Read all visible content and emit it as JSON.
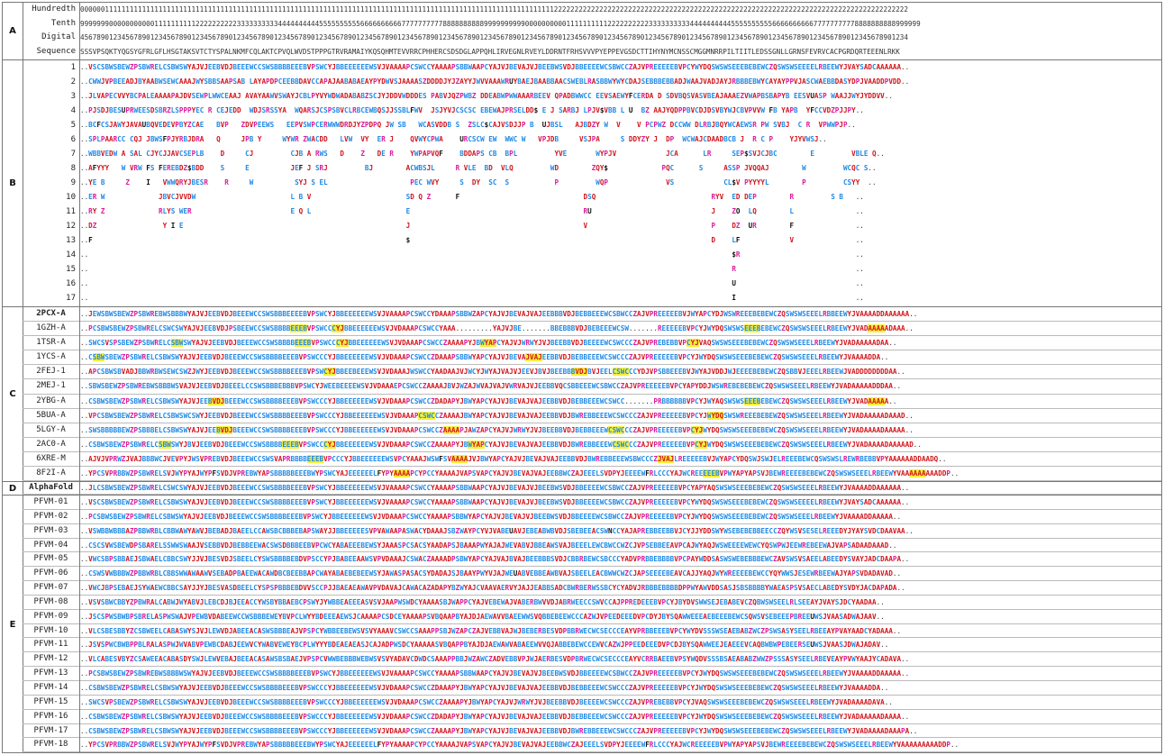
{
  "sections": {
    "A": {
      "letter": "A",
      "labels": [
        "Hundredth",
        "Tenth",
        "Digital",
        "Sequence"
      ],
      "rows": [
        "000000111111111111111111111111111111111111111111111111111111111111111111111111111111111111111111111111111111111111122222222222222222222222222222222222222222222222222222222222222222222222222222222222222",
        "999999900000000000111111111122222222223333333333444444444455555555556666666666777777777788888888889999999999000000000011111111112222222222333333333344444444445555555555666666666677777777778888888888999999",
        "456789012345678901234567890123456789012345678901234567890123456789012345678901234567890123456789012345678901234567890123456789012345678901234567890123456789012345678901234567890123456789012345678901234",
        "SSSVPSQKTYQGSYGFRLGFLHSGTAKSVTCTYSPALNKMFCQLAKTCPVQLWVDSTPPPGTRVRAMAIYKQSQHMTEVVRRCPHHERCSDSDGLAPPQHLIRVEGNLRVEYLDDRNTFRHSVVVPYEPPEVGSDCTTIHYNYMCNSSCMGGMNRRPILTIITLEDSSGNLLGRNSFEVRVCACPGRDQRTEEENLRKK"
      ]
    },
    "B": {
      "letter": "B",
      "labels": [
        "1",
        "2",
        "3",
        "4",
        "5",
        "6",
        "7",
        "8",
        "9",
        "10",
        "11",
        "12",
        "13",
        "14",
        "15",
        "16",
        "17"
      ],
      "rows": [
        "..VSCSBWSBEWZPSBWRELCSBWSWYAJVJEEBVDJBEEEWCCSWSBBBBEEEBVPSWCYJBBEEEEEEWSVJVAAAAPCSWCCYAAAAPSBBWAAPCYAJVJBEVAJVJBEEBWSVDJBBEEEEWCSBWCCZAJVPREEEEEBVPCYWYDQSWSWSEEEBEBEWCZQSWSWSEEEELRBEEWYJVAYSADCAAAAAA..",
        "..CWWJVPBEEADJBYAABWSEWCAAAJWYSBBSAAPSAB LAYAPDPCEEBBDAVCCAPAJAABABAEAYPYDWVSJAAAASZDDDDJYJZAYYJWVVAAAWRUYBAEJBAABBAACSWEBLRASBBWYWYCDAJSEBBBEBBADJWAAJVADJAYJRBBBEBWYCAYAYPPVJASCWAEBBDASYDPJVAADDPVDD..",
        "..JLVAPECVVYBCPALEAAAAPAJDVSEWPLWWCEAAJ AVAYAAWVSWAYJCBLPYVYWDWADABABZSCJYJDDVWDDDES PABVJQZPWBZ DDEABWPWWAAARBEEV QPADBWWCC EEVSAEWYFCERDA D SDVBQSVASVBEAJAAAEZVWAPBSBAPYB EESVUASP WAAJJWYJYDDVV..",
        "..PJSDJBESUPRWEESDSBRZLSPPPYEC R CEJEDD  WDJSRSSYA  WQARSJCSPSBVCLRBCEWBQSJJSSBLFWV  JSJYVJCSCSC EBEWAJPRSELDD$ E J SARBJ LPJV$VBB L U  BZ AAJYQDPPBVCDJDSVBYWJCBVPVVW FB YAPB  YFCCVDZPJJPY..",
        "..BCFCSJAWYJAVAUBQVEDEVPBYZCAE   BVP   ZDVPEEWS   EEPVSWPCERWWWDRDJYZPDPQ JW SB   WCASVDDB S  ZSLC$CAJVSDJJP B  UJBSL   AJBDZY W  V    V PCPWZ DCCWW DLRBJBQYWCAEWSR PW SVBJ  C R  VPWWPJP..",
        "..SPLPAARCC CQJ JBWSFPJYRBJDRA   Q     JPB Y     WYWR ZWACDD   LVW  VY  ER J    QVWYCPWA    URCSCW EW  WWC W   VPJDB     VSJPA     S DDYZY J  DP  WCWAJCDAADBCB J  R C P    YJYVWSJ..",
        "..WBBVEDW A SAL CJYCJJAVCSEPLB    D     CJ         CJB A RWS   D    Z   DE R    YWPAPVQF    BDDAPS CB  BPL         YVE       WYPJV            JCA      LR     SEP$SVJCJBC        E         VBLE Q..",
        "..AFYYY   W VRW FS FEREBDZ$BDD    S     E          JEF J SRJ         BJ        ACWBSJL     R VLE  BD  VLQ         WD        ZQY$             PQC      S     ASSP JVQQAJ        W         WCQC S..",
        "..YE B     Z    I   VWWQRYJBESR    R     W          SYJ S EL                    PEC WVY     S  DY  SC  S           P         WQP              VS            CL$V PYYYYL        P         CSYY  ..",
        "..ER W             JBVCJVVDW                       L B V                       SD Q Z      F                              DSQ                            RYV  ED DEP        R         S B   ..",
        "..RY Z             RLYS WER                        E Q L                       E                                          RU                             J    ZO  LQ        L               ..",
        "..DZ                Y I E                                                      J                                          V                              P    DZ  UR        F               ..",
        "..F                                                                            $                                                                         D    LF            V               ..",
        "..                                                                                                                                                            $R                            ..",
        "..                                                                                                                                                            R                             ..",
        "..                                                                                                                                                            U                             ..",
        "..                                                                                                                                                            I                             .."
      ]
    },
    "C": {
      "letter": "C",
      "labels": [
        "2PCX-A",
        "1GZH-A",
        "1TSR-A",
        "1YCS-A",
        "2FEJ-1",
        "2MEJ-1",
        "2YBG-A",
        "5BUA-A",
        "5LGY-A",
        "2AC0-A",
        "6XRE-M",
        "8F2I-A"
      ],
      "rows": [
        "..JEWSBWSBEWZPSBWREBWSBBBWYAJVJEEBVDJBEEEWCCSWSBBBEEEEBVPSWCYJBBEEEEEEWSVJVAAAAPCSWCCYDAAAPSBBWZAPCYAJVJBEVAJVAJEEBBBVDJBEBBEEEWCSBWCCZAJVPREEEEEBVJWYAPCYDJWSWREEEBEBEWCZQSWSWSEEELRBBEEWYJVAAAADDAAAAAA..",
        "..PCSBWSBEWZPSBWRELCSWCSWYAJVJEEBVDJPSBEEWCCSWSBBBBEEEBVPSWCCCYJBBEEEEEEWSVJVDAAAPCSWCCYAAA.........YAJVJBE.......BBEBBBVDJBEBEEEWCSW.......REEEEEBVPCYJWYDQSWSWSEEEBEBEWCZQSWSWSEEELRBEEWYJVADAAAAADAAA..",
        "..SWCSVSPSBEWZPSBWRELCSBWSWYAJVJEEBVDJBEEEWCCSWSBBBBEEEBVPSWCCCYJBBEEEEEEWSVJVDAAAPCSWCCZAAAAPYJBWYAPCYAJVJWRWYJVJBEEBBVDJBEEEEWCSWCCCZAJVPREBEBBVPCYJVAQSWSWSEEEBEBEWCZQSWSWSEEELRBEEWYJVADAAAAADAA..",
        "..CSBWSBEWZPSBWRELCSBWSWYAJVJEEBVDJBEEEWCCSWSBBBBEEEBVPSWCCCYJBBEEEEEEWSVJVDAAAPCSWCCZDAAAPSBBWYAPCYAJVJBEVAJVAJEEBBVDJBEBBEEEWCSWCCCZAJVPREEEEEBVPCYJWYDQSWSWSEEEBEBEWCZQSWSWSEEELRBEEWYJVAAAADDA..",
        "..APCSBWSBVADJBBWRBWSEWCSWZJWYJEEBVDJBEEEWCCSWSBBBBEEEBVPSWCYJBBEEBEEEWSVJVDAAAJWSWCCYAADAAJVJWCYJWYAJVAJVJEEVJBVJBEEBBBVDJBVJEELCSWCCCYDJVPSBBEEEBVJWYAJVDDJWJEEEEBEBEWCZQSBBVJEEELRBEEWJVADDDDDDDDAA..",
        "..SBWSBEWZPSBWREBWSBBBWSVAJVJEEBVDJBEEELCCSWSBBBEBBBVPSWCYJWEEBEEEEWSVJVDAAAEPCSWCCZAAAAJBVJWZAJWVAJVAJVWRVAJVJEEBBVQCSBBEEEWCSBWCCZAJVPREEEEEBVPCYAPYDDJWSWREBEBEBEWCZQSWSWSEEELRBEEWYJVADAAAAADDDAA..",
        "..CSBWSBEWZPSBWRELCSBWSWYAJVJEEBVDJBEEEWCCSWSBBBBEEEBVPSWCCCYJBBEEEEEEWSVJVDAAAPCSWCCZDADAPYJBWYAPCYAJVJBEVAJVAJEEBBVDJBEBBEEEWCSWCC.......PRBBBBBBVPCYJWYAQSWSWSEEEBEBEWCZQSWSWSEEELRBEEWYJVADAAAAA..",
        "..VPCSBWSBEWZPSBWRELCSBWSWCSWYJEEBVDJBEEEWCCSWSBBBBEEEBVPSWCCCYJBBEEEEEEWSVJVDAAAPCSWCCZAAAAJBWYAPCYAJVJBEVAJVAJEEBBVDJBWREBBEEEWCSWCCCZAJVPREEEEEBVPCYJWYDQSWSWREEEBEBEWZQSWSWSEEELRBEEWYJVADAAAAADAAAD..",
        "..SWSBBBBBEWZPSBBBELCSBWSWYAJVJEEBVDJBEEEWCCSWSBBBBEEEBVPSWCCCYJBBEEEEEEWSVJVDAAAPCSWCCZAAAAPJAWZAPCYAJVJWRWYJVJBEEBBVDJBEBBEEEWCSWCCCZAJVPREEEEEBVPCYJWYDQSWSWSEEEBEBEWCZQSWSWSEEELRBEEWYJVADAAAADAAAAA..",
        "..CSBWSBEWZPSBWRELCSBWSWYJBVJEEBVDJBEEEWCCSWSBBBBEEEBVPSWCCCYJBBEEEEEEWSVJVDAAAPCSWCCZAAAAPYJBWYAPCYAJVJBEVAJVAJEEBBVDJBWREBBEEEWCSWCCCZAJVPREEEEEBVPCYJWYDQSWSWSEEEBEBEWCZQSWSWSEEELRBEEWYJVADAAAADAAAAAD..",
        "..AJVJVPRWZJVAJBBBWCJVEVPYJWSVPREBVDJBEEEWCCSWSVAPRBBBBEEEBVPCCCYJBBEEEEEEWSVPCYAAAJWSWFSVAAAAJVJBWYAPCYAJVJBEVAJVAJEEBBVDJBWREBBEEEWSBWCCCZJVAJLREEEEEBVJWYAPCYDQSWJSWJELREEEBEWCQSWSWSLREWRBEBBVPYAAAAAADDAADQ..",
        "..YPCSVPRBBWZPSBWRELSVJWYPYAJWYPFSVDJVPREBWYAPSBBBBBEEEBWYPSWCYAJEEEEEELFYPYAAAAPCYPCCYAAAAJVAPSVAPCYAJVJBEVAJVAJEEBBWCZAJEEELSVDPYJEEEEWFRLCCCYAJWCREEEEEBVPWYAPYAPSVJBEWREEEEBEBEWCZQSWSWSEEELRBEEWYVAAAAAAAAADDP.."
      ]
    },
    "D": {
      "letter": "D",
      "labels": [
        "AlphaFold"
      ],
      "rows": [
        "..JLCSBWSBEWZPSBWRELCSWCSWYAJVJEEBVDJBEEEWCCSWSBBBBEEEBVPSWCYJBBEEEEEEWSVJVAAAAPCSWCCYAAAAPSBBWAAPCYAJVJBEVAJVJBEEBWSVDJBBEEEEWCSBWCCZAJVPREEEEEBVPCYAPYAQSWSWSEEEBEBEWCZQSWSWSEEELRBEEWYJVAAAADDAAAAAA.."
      ]
    },
    "E": {
      "letter": "E",
      "labels": [
        "PFVM-01",
        "PFVM-02",
        "PFVM-03",
        "PFVM-04",
        "PFVM-05",
        "PFVM-06",
        "PFVM-07",
        "PFVM-08",
        "PFVM-09",
        "PFVM-10",
        "PFVM-11",
        "PFVM-12",
        "PFVM-13",
        "PFVM-14",
        "PFVM-15",
        "PFVM-16",
        "PFVM-17",
        "PFVM-18"
      ],
      "rows": [
        "..VSCSBWSBEWZPSBWRELCSBWSWYAJVJEEBVDJBEEEWCCSWSBBBBEEEBVPSWCYJBBEEEEEEWSVJVAAAAPCSWCCYAAAAPSBBWAAPCYAJVJBEVAJVJBEEBWSVDJBBEEEEWCSBWCCZAJVPREEEEEBVPCYWYDQSWSWSEEEBEBEWCZQSWSWSEEEELRBEEWYJVAYSADCAAAAAA..",
        "..PCSBWSBEWZPSBWRELCSBWSWYAJVJEEBVDJBEEEWCCSWSBBBBEEEBVPSWCYJBBEEEEEEWSVJVDAAAPCSWCCYAAAAPSBBWYAPCYAJVJBEVAJVJBEEBWSVDJBBEEEEWCSBWCCZAJVPREEEEEBVPCYJWYDQSWSWSEEEBEBEWCZQSWSWSEEELRBEEWYJVAAAADDAAAAA..",
        "..VSWBBWBBBAZPBBWRBLCBBWAWYAWVJBEBADJBAEELCCAWSBCBBBEBAPSWAYJJBBEEEEESVPVAWAAPASWACYDAAAJSBZWAYPCYVJVABEUAVJEBEABWBVDJSBEBEEACSWNCCYAJAPREBBEEBBVJCYJJYDDSWYWSEBEBEBBEECCZQYWSVSESELREEEDYJYAYSVDCDAAVAA..",
        "..CSCSVWSBEWDPSBARELSSWWSWAAJVSEBBVDJBEBBEEWACSWSDBBBEEBVPCWCYABAEEEBEWSYJAAASPCSACSYAADAPSJBAAAPWYAJAJWEVABVJBBEAWSVAJBEEELEWCBWCCWZCJVPSEBBEEAVPCAJWYAQJWSWEEEEWEWCYQSWPWJEEWREBEEWAJVAPSADAADAAAD..",
        "..VWCSBPSBBAEJSBWAELCBBCSWYJJVJBESVDJSBEELCYSWSBBBBEBDVPSCCYPJBABEEAAWSVPVDAAAJCSWACZAAAADPSBWYAPCYAJVAJBVAJBEEBBBSVDJCBBRBEWCSBCCCYADVPRBBEBBBBVPCPAYWDDSASWSWEBEBBBEWCZAVSWSVSAEELABEEDYSVAYJADCDAAPA..",
        "..CSWSVWBBBWZPBBWRBLCBBSWWAWAAWVSEBADPBAEEWACAWDBCBEEBBAPCWAYABAEBEBEEWSYJAWASPASACSYDADAJSJBAAYPWYVJAJWEUABVEBBEAWBVAJSBEELEACBWWCWZCJAPSEEEEBEAVCAJJYAQJWYWREEEEBEWCCYQYWWSJESEWRBEEWAJYAPSVDADAVAD..",
        "..VWCJBPSEBAEJSYWAEWCBBCSAYJJYJBESVASDBEELCYSPSPBBBEBDVVSCCPJJBAEAEAWAVPVDAVAJCAWACAZADAPYBZWYAJCVAAVAERVYJAJJEABBSADCBWRBERWSSBCYCYADVJRBBBEBBBBDPPWYAWVDDSASJSBSBBBBYWAEASPSVSAECLABEDYSVDYJACDAPADA..",
        "..VSVSBWCBBYZPBWRALCABWJWYABVJLEBCDJBJEEACCYWSBYBBAEBCPSWYJYWBBEAEEEASVSVJAAPWSWDCYAAAASBJWAPPCYAJVEBEWAJVABERBWVVDJABRWEECCSWVCCAJPPREDEEEBVPCYJBYDVSWWSEJEBABEVCZQBWSWSEELRLSEEAYJVAYSJDCYAADAA..",
        "..JSCSPWSBWBPSBRELASPWSWAJVPEWBVDABEEWCCWSBBBEWEYBVPCLWYYBDEEEAEWSJCAAAAPCSDCEYAAAAPSVBQAAPBYAJDJAEWAVVBAEEWWSVQBBEBEEWCCCAZWJVPEEDEEEDVPCDYJBYSQAWWEEEAEBEEEBEWCSQWSVSEBEEEPBREEUWSJVAASADWAJAAV..",
        "..VLCSBESBBYZCSBWEELCABASWYSJVJLEWVDJABEEACASWSBBBEAJVPSPCYWBBEEBEWSVSVYAAAVCSWCCSAAAPPSBJWZAPCZAJVEBBVAJWJBEBERBESVDPBBRWECWCSECCCEAYVPRBBEEEBVPCYWYDVSSSWSEAEBABZWCZPSWSASYSEELRBEEAYPVAYAADCYADAAA..",
        "..JSVSPWCBWBPPBLRALASPWJWVABVPEWBCDABJEEWVCYWABVEWEYBCPLWYYYBDEAEAEASJCAJADPWSDCYAAAAASVBQAPPBYAJDJAEWAWVABAEEWVVQJABBEBEWCCEWVCAZWJPPEEDEEEDVPCDJBYSQAWWEEJEAEEEVCAQBWBWPEBEERSEUWSJVAASJDWAJADAV..",
        "..VLCABESVBYZCSAWEEACABASDYSWJLEWVEBAJBEEACASAWSBSBAEJVPSPCVWWBEBBBWEBWSVSVYADAVCDWDCSAAAPPBBJWZAWCZADVEBBVPJWJAERBESVDPBRWECWCSECCCEAYVCRRBAEEBVPSYWQDVSSSBSAEABABZWWZPSSSASYSEELRBEVEAYPVWYAAJYCADAVA..",
        "..PCSBWSBEWZPSBWREBWSBBBWSWYAJVJEEBVDJBEEEWCCSWSBBBBEEEBVPSWCYJBBEEEEEEWSVJVAAAAPCSWCCYAAAAPSBBWAAPCYAJVJBEVAJVJBEEBWSVDJBBEEEEWCSBWCCZAJVPREEEEEBVPCYJWYDQSWSWSEEEBEBEWCZQSWSWSEEELRBEEWYJVAAAADDAAAAA..",
        "..CSBWSBEWZPSBWRELCSBWSWYAJVJEEBVDJBEEEWCCSWSBBBBEEEBVPSWCCCYJBBEEEEEEWSVJVDAAAPCSWCCZDAAAPYJBWYAPCYAJVJBEVAJVAJEEBBVDJBEBBEEEWCSWCCCZAJVPREEEEEBVPCYJWYDQSWSWSEEEBEBEWCZQSWSWSEEELRBEEWYJVAAAADDA..",
        "..SWCSVPSBEWZPSBWRELCSBWSWYAJVJEEBVDJBEEEWCCSWSBBBBEEEBVPSWCCCYJBBEEEEEEWSVJVDAAAPCSWCCZAAAAPYJBWYAPCYAJVJWRWYJVJBEEBBVDJBEEEEWCSWCCCZAJVPREBEBBVPCYJVAQSWSWSEEEBEBEWCZQSWSWSEEELRBEEWYJVADAAAADAVA..",
        "..CSBWSBEWZPSBWRELCSBWSWYAJVJEEBVDJBEEEWCCSWSBBBBEEEBVPSWCCCYJBBEEEEEEWSVJVDAAAPCSWCCZDADAPYJBWYAPCYAJVJBEVAJVAJEEBBVDJBEBBEEEWCSWCCCZAJVPREEEEEBVPCYJWYDQSWSWSEEEBEBEWCZQSWSWSEEELRBEEWYJVADAAAAADAAAA..",
        "..CSBWSBEWZPSBWRELCSBWSWYAJVJEEBVDJBEEEWCCSWSBBBBEEEBVPSWCCCYJBBEEEEEEWSVJVDAAAPCSWCCZAAAAPYJBWYAPCYAJVJBEVAJVAJEEBBVDJBWREBBEEEWCSWCCCZAJVPREEEEEBVPCYJWYDQSWSWSEEEBEBEWCZQSWSWSEEELRBEEWYJVADAAAADAAAPA..",
        "..YPCSVPRBBWZPSBWRELSVJWYPYAJWYPFSVDJVPREBWYAPSBBBBBEEEBWYPSWCYAJEEEEEELFYPYAAAAPCYPCCYAAAAJVAPSVAPCYAJVJBEVAJVAJEEBBWCZAJEEELSVDPYJEEEEWFRLCCCYAJWCREEEEEBVPWYAPYAPSVJBEWREEEEBEBEWCZQSWSWSEEELRBEEWYVAAAAAAAAADDP.."
      ]
    }
  }
}
